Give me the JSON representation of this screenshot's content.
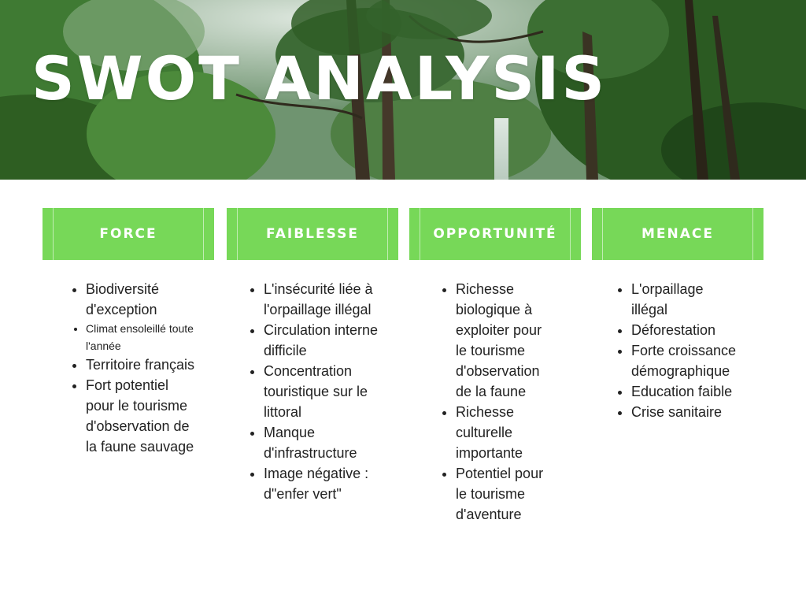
{
  "title": "SWOT ANALYSIS",
  "colors": {
    "accent": "#77d858",
    "title_text": "#ffffff",
    "body_text": "#222222"
  },
  "columns": [
    {
      "header": "FORCE",
      "items": [
        "Biodiversité d'exception",
        "Climat ensoleillé toute l'année",
        "Territoire français",
        "Fort potentiel pour le tourisme d'observation de la faune sauvage"
      ]
    },
    {
      "header": "FAIBLESSE",
      "items": [
        "L'insécurité liée à l'orpaillage illégal",
        "Circulation interne difficile",
        "Concentration touristique sur le littoral",
        "Manque d'infrastructure",
        "Image négative : d\"enfer vert\""
      ]
    },
    {
      "header": "OPPORTUNITÉ",
      "items": [
        "Richesse biologique à exploiter pour le tourisme d'observation de la faune",
        "Richesse culturelle importante",
        "Potentiel pour le tourisme d'aventure"
      ]
    },
    {
      "header": "MENACE",
      "items": [
        "L'orpaillage illégal",
        "Déforestation",
        "Forte croissance démographique",
        "Education faible",
        "Crise sanitaire"
      ]
    }
  ]
}
